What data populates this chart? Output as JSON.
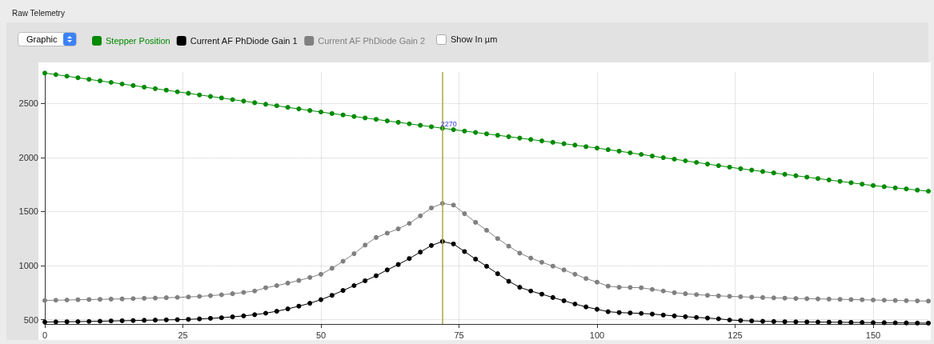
{
  "chart_data": {
    "type": "line",
    "title": "Raw Telemetry",
    "x": [
      0,
      2,
      4,
      6,
      8,
      10,
      12,
      14,
      16,
      18,
      20,
      22,
      24,
      26,
      28,
      30,
      32,
      34,
      36,
      38,
      40,
      42,
      44,
      46,
      48,
      50,
      52,
      54,
      56,
      58,
      60,
      62,
      64,
      66,
      68,
      70,
      72,
      74,
      76,
      78,
      80,
      82,
      84,
      86,
      88,
      90,
      92,
      94,
      96,
      98,
      100,
      102,
      104,
      106,
      108,
      110,
      112,
      114,
      116,
      118,
      120,
      122,
      124,
      126,
      128,
      130,
      132,
      134,
      136,
      138,
      140,
      142,
      144,
      146,
      148,
      150,
      152,
      154,
      156,
      158,
      160
    ],
    "series": [
      {
        "name": "Stepper Position",
        "color": "#008a00",
        "values": [
          2780,
          2766,
          2751,
          2737,
          2722,
          2708,
          2694,
          2679,
          2665,
          2650,
          2636,
          2622,
          2607,
          2593,
          2578,
          2564,
          2550,
          2535,
          2521,
          2506,
          2492,
          2478,
          2463,
          2449,
          2434,
          2420,
          2406,
          2393,
          2379,
          2365,
          2352,
          2338,
          2325,
          2311,
          2297,
          2284,
          2270,
          2257,
          2244,
          2231,
          2218,
          2205,
          2192,
          2179,
          2166,
          2153,
          2140,
          2127,
          2114,
          2100,
          2087,
          2072,
          2058,
          2043,
          2028,
          2013,
          1998,
          1984,
          1969,
          1954,
          1939,
          1924,
          1910,
          1896,
          1883,
          1870,
          1857,
          1844,
          1831,
          1818,
          1805,
          1792,
          1779,
          1766,
          1753,
          1740,
          1730,
          1719,
          1709,
          1698,
          1688
        ]
      },
      {
        "name": "Current AF PhDiode Gain 1",
        "color": "#000000",
        "values": [
          478,
          480,
          481,
          482,
          484,
          486,
          488,
          490,
          492,
          494,
          496,
          498,
          500,
          503,
          507,
          512,
          518,
          526,
          535,
          546,
          560,
          578,
          600,
          625,
          652,
          685,
          725,
          770,
          815,
          860,
          906,
          960,
          1010,
          1065,
          1125,
          1186,
          1223,
          1200,
          1130,
          1060,
          994,
          925,
          855,
          800,
          765,
          736,
          705,
          675,
          645,
          618,
          596,
          574,
          566,
          562,
          558,
          552,
          543,
          535,
          528,
          521,
          515,
          508,
          497,
          492,
          488,
          485,
          483,
          481,
          480,
          479,
          478,
          477,
          476,
          475,
          474,
          473,
          472,
          471,
          470,
          469,
          468
        ]
      },
      {
        "name": "Current AF PhDiode Gain 2",
        "color": "#808080",
        "values": [
          678,
          680,
          682,
          684,
          686,
          688,
          690,
          692,
          695,
          698,
          700,
          703,
          706,
          710,
          715,
          722,
          730,
          740,
          752,
          765,
          795,
          815,
          838,
          862,
          890,
          920,
          975,
          1040,
          1110,
          1190,
          1260,
          1300,
          1340,
          1390,
          1460,
          1533,
          1575,
          1560,
          1480,
          1400,
          1327,
          1250,
          1180,
          1115,
          1070,
          1031,
          995,
          960,
          920,
          880,
          847,
          810,
          800,
          798,
          795,
          780,
          765,
          750,
          740,
          732,
          725,
          720,
          716,
          712,
          708,
          705,
          702,
          699,
          696,
          694,
          692,
          690,
          688,
          686,
          684,
          682,
          680,
          678,
          676,
          674,
          672
        ]
      }
    ],
    "xlim": [
      0,
      160
    ],
    "xticks": [
      0,
      25,
      50,
      75,
      100,
      125,
      150
    ],
    "ylim": [
      460,
      2790
    ],
    "yticks": [
      500,
      1000,
      1500,
      2000,
      2500
    ],
    "ref_lines": [
      {
        "axis": "x",
        "value": 72,
        "color": "#a8a84a"
      }
    ],
    "annotations": [
      "Graphic",
      "Show In µm",
      {
        "text": "2270",
        "x": 72,
        "y": 2270
      }
    ],
    "grid": true,
    "legend": "top left",
    "marker": "circle",
    "line_style": "solid"
  }
}
